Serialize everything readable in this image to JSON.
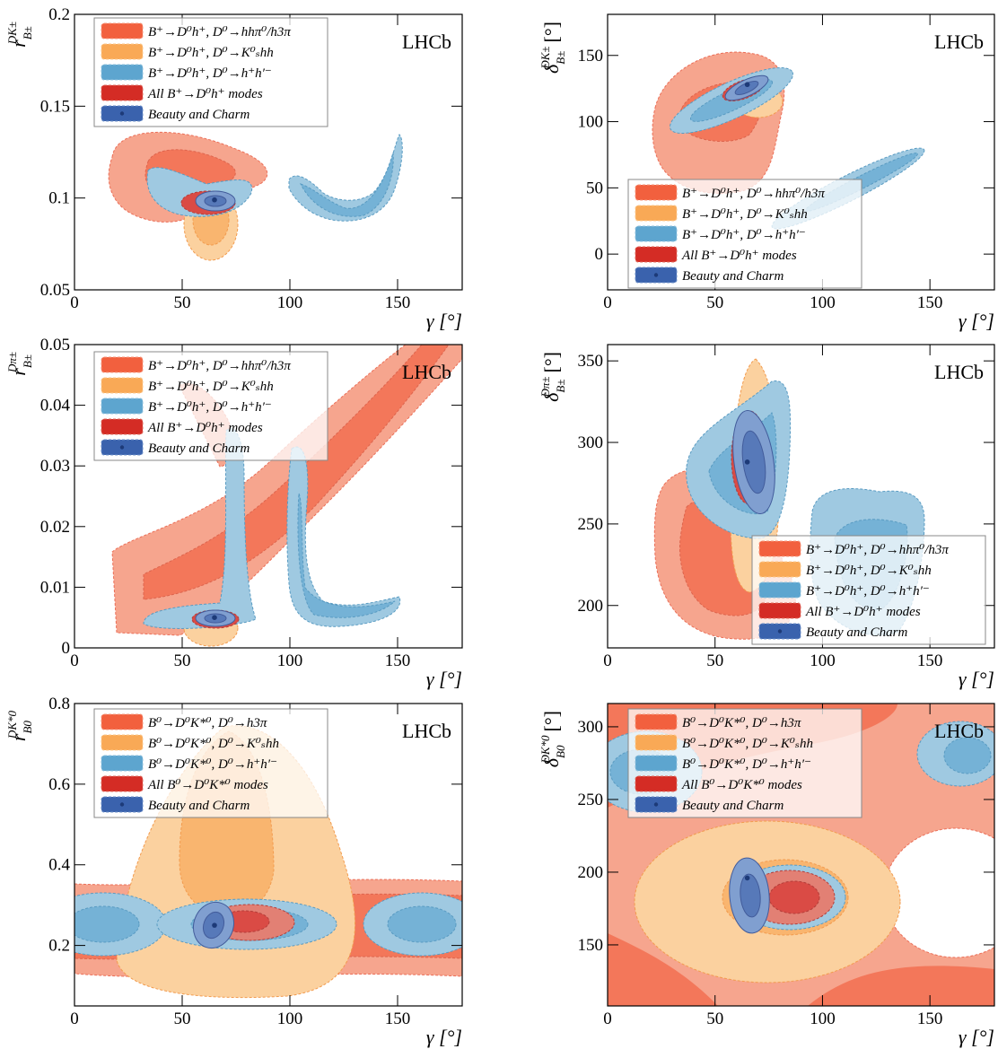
{
  "chart_data": [
    {
      "type": "contour",
      "annotation": "LHCb",
      "x_label": "γ [°]",
      "y_label": {
        "symbol": "r",
        "sub": "B±",
        "sup": "DK±"
      },
      "xlim": [
        0,
        180
      ],
      "xticks": [
        0,
        50,
        100,
        150
      ],
      "ylim": [
        0.05,
        0.2
      ],
      "yticks": [
        0.05,
        0.1,
        0.15,
        0.2
      ],
      "series": [
        {
          "name": "B⁺→D⁰h⁺, D⁰→hhπ⁰/h3π",
          "color": "#f2603e"
        },
        {
          "name": "B⁺→D⁰h⁺, D⁰→K⁰ₛhh",
          "color": "#f9a956"
        },
        {
          "name": "B⁺→D⁰h⁺, D⁰→h⁺h′⁻",
          "color": "#5da5cf"
        },
        {
          "name": "All B⁺→D⁰h⁺ modes",
          "color": "#d42c25"
        },
        {
          "name": "Beauty and Charm",
          "color": "#3a62ad"
        }
      ],
      "best_fit": {
        "x": 65,
        "y": 0.099
      }
    },
    {
      "type": "contour",
      "annotation": "LHCb",
      "x_label": "γ [°]",
      "y_label": {
        "symbol": "δ",
        "sub": "B±",
        "sup": "DK±",
        "unit": "[°]"
      },
      "xlim": [
        0,
        180
      ],
      "xticks": [
        0,
        50,
        100,
        150
      ],
      "ylim": [
        -27,
        181
      ],
      "yticks": [
        0,
        50,
        100,
        150
      ],
      "series": [
        {
          "name": "B⁺→D⁰h⁺, D⁰→hhπ⁰/h3π",
          "color": "#f2603e"
        },
        {
          "name": "B⁺→D⁰h⁺, D⁰→K⁰ₛhh",
          "color": "#f9a956"
        },
        {
          "name": "B⁺→D⁰h⁺, D⁰→h⁺h′⁻",
          "color": "#5da5cf"
        },
        {
          "name": "All B⁺→D⁰h⁺ modes",
          "color": "#d42c25"
        },
        {
          "name": "Beauty and Charm",
          "color": "#3a62ad"
        }
      ],
      "best_fit": {
        "x": 65,
        "y": 128
      }
    },
    {
      "type": "contour",
      "annotation": "LHCb",
      "x_label": "γ [°]",
      "y_label": {
        "symbol": "r",
        "sub": "B±",
        "sup": "Dπ±"
      },
      "xlim": [
        0,
        180
      ],
      "xticks": [
        0,
        50,
        100,
        150
      ],
      "ylim": [
        0,
        0.05
      ],
      "yticks": [
        0,
        0.01,
        0.02,
        0.03,
        0.04,
        0.05
      ],
      "series": [
        {
          "name": "B⁺→D⁰h⁺, D⁰→hhπ⁰/h3π",
          "color": "#f2603e"
        },
        {
          "name": "B⁺→D⁰h⁺, D⁰→K⁰ₛhh",
          "color": "#f9a956"
        },
        {
          "name": "B⁺→D⁰h⁺, D⁰→h⁺h′⁻",
          "color": "#5da5cf"
        },
        {
          "name": "All B⁺→D⁰h⁺ modes",
          "color": "#d42c25"
        },
        {
          "name": "Beauty and Charm",
          "color": "#3a62ad"
        }
      ],
      "best_fit": {
        "x": 65,
        "y": 0.005
      }
    },
    {
      "type": "contour",
      "annotation": "LHCb",
      "x_label": "γ [°]",
      "y_label": {
        "symbol": "δ",
        "sub": "B±",
        "sup": "Dπ±",
        "unit": "[°]"
      },
      "xlim": [
        0,
        180
      ],
      "xticks": [
        0,
        50,
        100,
        150
      ],
      "ylim": [
        174,
        360
      ],
      "yticks": [
        200,
        250,
        300,
        350
      ],
      "series": [
        {
          "name": "B⁺→D⁰h⁺, D⁰→hhπ⁰/h3π",
          "color": "#f2603e"
        },
        {
          "name": "B⁺→D⁰h⁺, D⁰→K⁰ₛhh",
          "color": "#f9a956"
        },
        {
          "name": "B⁺→D⁰h⁺, D⁰→h⁺h′⁻",
          "color": "#5da5cf"
        },
        {
          "name": "All B⁺→D⁰h⁺ modes",
          "color": "#d42c25"
        },
        {
          "name": "Beauty and Charm",
          "color": "#3a62ad"
        }
      ],
      "best_fit": {
        "x": 65,
        "y": 288
      }
    },
    {
      "type": "contour",
      "annotation": "LHCb",
      "x_label": "γ [°]",
      "y_label": {
        "symbol": "r",
        "sub": "B0",
        "sup": "DK*0"
      },
      "xlim": [
        0,
        180
      ],
      "xticks": [
        0,
        50,
        100,
        150
      ],
      "ylim": [
        0.05,
        0.8
      ],
      "yticks": [
        0.2,
        0.4,
        0.6,
        0.8
      ],
      "series": [
        {
          "name": "B⁰→D⁰K*⁰, D⁰→h3π",
          "color": "#f2603e"
        },
        {
          "name": "B⁰→D⁰K*⁰, D⁰→K⁰ₛhh",
          "color": "#f9a956"
        },
        {
          "name": "B⁰→D⁰K*⁰, D⁰→h⁺h′⁻",
          "color": "#5da5cf"
        },
        {
          "name": "All B⁰→D⁰K*⁰ modes",
          "color": "#d42c25"
        },
        {
          "name": "Beauty and Charm",
          "color": "#3a62ad"
        }
      ],
      "best_fit": {
        "x": 65,
        "y": 0.25
      }
    },
    {
      "type": "contour",
      "annotation": "LHCb",
      "x_label": "γ [°]",
      "y_label": {
        "symbol": "δ",
        "sub": "B0",
        "sup": "DK*0",
        "unit": "[°]"
      },
      "xlim": [
        0,
        180
      ],
      "xticks": [
        0,
        50,
        100,
        150
      ],
      "ylim": [
        108,
        316
      ],
      "yticks": [
        150,
        200,
        250,
        300
      ],
      "series": [
        {
          "name": "B⁰→D⁰K*⁰, D⁰→h3π",
          "color": "#f2603e"
        },
        {
          "name": "B⁰→D⁰K*⁰, D⁰→K⁰ₛhh",
          "color": "#f9a956"
        },
        {
          "name": "B⁰→D⁰K*⁰, D⁰→h⁺h′⁻",
          "color": "#5da5cf"
        },
        {
          "name": "All B⁰→D⁰K*⁰ modes",
          "color": "#d42c25"
        },
        {
          "name": "Beauty and Charm",
          "color": "#3a62ad"
        }
      ],
      "best_fit": {
        "x": 65,
        "y": 196
      }
    }
  ]
}
